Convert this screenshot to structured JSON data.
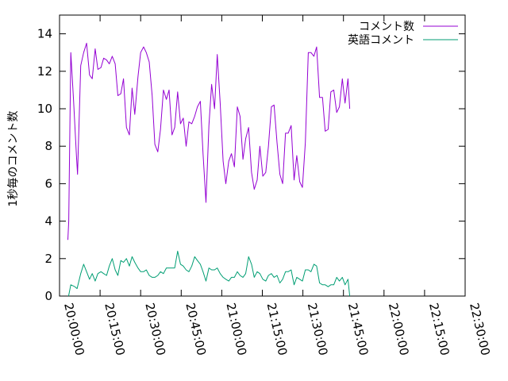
{
  "chart_data": {
    "type": "line",
    "title": "",
    "xlabel": "",
    "ylabel": "1秒毎のコメント数",
    "x_unit": "time of day (HH:MM:SS)",
    "xlim": [
      "20:00:00",
      "22:30:00"
    ],
    "ylim": [
      0,
      15
    ],
    "x_ticks": [
      "20:00:00",
      "20:15:00",
      "20:30:00",
      "20:45:00",
      "21:00:00",
      "21:15:00",
      "21:30:00",
      "21:45:00",
      "22:00:00",
      "22:15:00",
      "22:30:00"
    ],
    "y_ticks": [
      0,
      2,
      4,
      6,
      8,
      10,
      12,
      14
    ],
    "grid": false,
    "legend_position": "top-right",
    "series": [
      {
        "name": "コメント数",
        "color": "#9400d3",
        "points": [
          [
            "20:03:05",
            3.0
          ],
          [
            "20:03:25",
            4.0
          ],
          [
            "20:04:10",
            13.0
          ],
          [
            "20:05:10",
            10.5
          ],
          [
            "20:06:15",
            7.5
          ],
          [
            "20:06:40",
            6.5
          ],
          [
            "20:07:50",
            12.3
          ],
          [
            "20:08:55",
            13.0
          ],
          [
            "20:10:00",
            13.5
          ],
          [
            "20:11:05",
            11.8
          ],
          [
            "20:12:05",
            11.6
          ],
          [
            "20:13:10",
            13.2
          ],
          [
            "20:14:10",
            12.1
          ],
          [
            "20:15:20",
            12.2
          ],
          [
            "20:16:20",
            12.7
          ],
          [
            "20:17:25",
            12.6
          ],
          [
            "20:18:25",
            12.4
          ],
          [
            "20:19:30",
            12.8
          ],
          [
            "20:20:35",
            12.4
          ],
          [
            "20:21:35",
            10.7
          ],
          [
            "20:22:40",
            10.8
          ],
          [
            "20:23:40",
            11.6
          ],
          [
            "20:24:45",
            9.0
          ],
          [
            "20:25:50",
            8.6
          ],
          [
            "20:26:50",
            11.1
          ],
          [
            "20:27:50",
            9.7
          ],
          [
            "20:29:00",
            11.7
          ],
          [
            "20:30:00",
            13.0
          ],
          [
            "20:31:05",
            13.3
          ],
          [
            "20:32:05",
            13.0
          ],
          [
            "20:33:10",
            12.5
          ],
          [
            "20:34:15",
            10.7
          ],
          [
            "20:35:15",
            8.1
          ],
          [
            "20:36:20",
            7.7
          ],
          [
            "20:37:20",
            8.9
          ],
          [
            "20:38:25",
            11.0
          ],
          [
            "20:39:30",
            10.5
          ],
          [
            "20:40:30",
            11.0
          ],
          [
            "20:41:35",
            8.6
          ],
          [
            "20:42:35",
            9.0
          ],
          [
            "20:43:40",
            10.9
          ],
          [
            "20:44:45",
            9.2
          ],
          [
            "20:45:45",
            9.5
          ],
          [
            "20:46:50",
            8.0
          ],
          [
            "20:47:50",
            9.3
          ],
          [
            "20:48:55",
            9.2
          ],
          [
            "20:50:00",
            9.6
          ],
          [
            "20:51:00",
            10.1
          ],
          [
            "20:52:05",
            10.4
          ],
          [
            "20:53:05",
            7.6
          ],
          [
            "20:54:10",
            5.0
          ],
          [
            "20:55:15",
            9.1
          ],
          [
            "20:56:15",
            11.3
          ],
          [
            "20:57:20",
            10.0
          ],
          [
            "20:58:20",
            12.9
          ],
          [
            "20:59:25",
            10.3
          ],
          [
            "21:00:30",
            7.2
          ],
          [
            "21:01:30",
            6.0
          ],
          [
            "21:02:35",
            7.2
          ],
          [
            "21:03:35",
            7.6
          ],
          [
            "21:04:40",
            6.9
          ],
          [
            "21:05:45",
            10.1
          ],
          [
            "21:06:45",
            9.6
          ],
          [
            "21:07:50",
            7.3
          ],
          [
            "21:08:50",
            8.4
          ],
          [
            "21:09:55",
            9.0
          ],
          [
            "21:11:00",
            6.6
          ],
          [
            "21:12:00",
            5.7
          ],
          [
            "21:13:05",
            6.2
          ],
          [
            "21:14:05",
            8.0
          ],
          [
            "21:15:10",
            6.4
          ],
          [
            "21:16:15",
            6.6
          ],
          [
            "21:17:15",
            8.0
          ],
          [
            "21:18:20",
            10.1
          ],
          [
            "21:19:20",
            10.2
          ],
          [
            "21:20:25",
            8.2
          ],
          [
            "21:21:30",
            6.5
          ],
          [
            "21:22:30",
            6.0
          ],
          [
            "21:23:35",
            8.7
          ],
          [
            "21:24:35",
            8.7
          ],
          [
            "21:25:40",
            9.1
          ],
          [
            "21:26:45",
            6.2
          ],
          [
            "21:27:45",
            7.5
          ],
          [
            "21:28:50",
            6.1
          ],
          [
            "21:29:50",
            5.8
          ],
          [
            "21:30:55",
            8.2
          ],
          [
            "21:32:00",
            13.0
          ],
          [
            "21:33:00",
            13.0
          ],
          [
            "21:34:05",
            12.8
          ],
          [
            "21:35:05",
            13.3
          ],
          [
            "21:36:10",
            10.6
          ],
          [
            "21:37:15",
            10.6
          ],
          [
            "21:38:15",
            8.8
          ],
          [
            "21:39:20",
            8.9
          ],
          [
            "21:40:20",
            10.9
          ],
          [
            "21:41:25",
            11.0
          ],
          [
            "21:42:30",
            9.8
          ],
          [
            "21:43:30",
            10.1
          ],
          [
            "21:44:35",
            11.6
          ],
          [
            "21:45:35",
            10.3
          ],
          [
            "21:46:40",
            11.6
          ],
          [
            "21:47:20",
            10.0
          ]
        ]
      },
      {
        "name": "英語コメント",
        "color": "#009e73",
        "points": [
          [
            "20:03:20",
            0.0
          ],
          [
            "20:04:10",
            0.6
          ],
          [
            "20:05:40",
            0.5
          ],
          [
            "20:06:30",
            0.4
          ],
          [
            "20:07:50",
            1.2
          ],
          [
            "20:08:55",
            1.7
          ],
          [
            "20:10:00",
            1.3
          ],
          [
            "20:11:05",
            0.9
          ],
          [
            "20:12:05",
            1.2
          ],
          [
            "20:13:10",
            0.8
          ],
          [
            "20:14:10",
            1.2
          ],
          [
            "20:15:20",
            1.3
          ],
          [
            "20:16:20",
            1.2
          ],
          [
            "20:17:25",
            1.1
          ],
          [
            "20:18:25",
            1.6
          ],
          [
            "20:19:30",
            2.0
          ],
          [
            "20:20:35",
            1.4
          ],
          [
            "20:21:35",
            1.1
          ],
          [
            "20:22:40",
            1.9
          ],
          [
            "20:23:40",
            1.8
          ],
          [
            "20:24:45",
            2.0
          ],
          [
            "20:25:50",
            1.6
          ],
          [
            "20:26:50",
            2.1
          ],
          [
            "20:27:50",
            1.8
          ],
          [
            "20:29:00",
            1.5
          ],
          [
            "20:30:00",
            1.3
          ],
          [
            "20:31:05",
            1.3
          ],
          [
            "20:32:05",
            1.4
          ],
          [
            "20:33:10",
            1.1
          ],
          [
            "20:34:15",
            1.0
          ],
          [
            "20:35:15",
            1.0
          ],
          [
            "20:36:20",
            1.1
          ],
          [
            "20:37:20",
            1.3
          ],
          [
            "20:38:25",
            1.2
          ],
          [
            "20:39:30",
            1.5
          ],
          [
            "20:40:30",
            1.5
          ],
          [
            "20:41:35",
            1.5
          ],
          [
            "20:42:35",
            1.5
          ],
          [
            "20:43:40",
            2.4
          ],
          [
            "20:44:45",
            1.7
          ],
          [
            "20:45:45",
            1.6
          ],
          [
            "20:46:50",
            1.4
          ],
          [
            "20:47:50",
            1.3
          ],
          [
            "20:48:55",
            1.6
          ],
          [
            "20:50:00",
            2.1
          ],
          [
            "20:51:00",
            1.9
          ],
          [
            "20:52:05",
            1.7
          ],
          [
            "20:53:05",
            1.3
          ],
          [
            "20:54:10",
            0.8
          ],
          [
            "20:55:15",
            1.5
          ],
          [
            "20:56:15",
            1.4
          ],
          [
            "20:57:20",
            1.4
          ],
          [
            "20:58:20",
            1.5
          ],
          [
            "20:59:25",
            1.2
          ],
          [
            "21:00:30",
            1.0
          ],
          [
            "21:01:30",
            0.9
          ],
          [
            "21:02:35",
            0.8
          ],
          [
            "21:03:35",
            1.0
          ],
          [
            "21:04:40",
            1.0
          ],
          [
            "21:05:45",
            1.3
          ],
          [
            "21:06:45",
            1.1
          ],
          [
            "21:07:50",
            1.0
          ],
          [
            "21:08:50",
            1.2
          ],
          [
            "21:09:55",
            2.1
          ],
          [
            "21:11:00",
            1.7
          ],
          [
            "21:12:00",
            1.0
          ],
          [
            "21:13:05",
            1.3
          ],
          [
            "21:14:05",
            1.2
          ],
          [
            "21:15:10",
            0.9
          ],
          [
            "21:16:15",
            0.8
          ],
          [
            "21:17:15",
            1.1
          ],
          [
            "21:18:20",
            1.2
          ],
          [
            "21:19:20",
            1.0
          ],
          [
            "21:20:25",
            1.1
          ],
          [
            "21:21:30",
            0.7
          ],
          [
            "21:22:30",
            0.9
          ],
          [
            "21:23:35",
            1.3
          ],
          [
            "21:24:35",
            1.3
          ],
          [
            "21:25:40",
            1.4
          ],
          [
            "21:26:45",
            0.6
          ],
          [
            "21:27:45",
            1.0
          ],
          [
            "21:28:50",
            0.9
          ],
          [
            "21:29:50",
            0.8
          ],
          [
            "21:30:55",
            1.4
          ],
          [
            "21:32:00",
            1.4
          ],
          [
            "21:33:00",
            1.3
          ],
          [
            "21:34:05",
            1.7
          ],
          [
            "21:35:05",
            1.6
          ],
          [
            "21:36:10",
            0.7
          ],
          [
            "21:37:15",
            0.6
          ],
          [
            "21:38:15",
            0.6
          ],
          [
            "21:39:20",
            0.5
          ],
          [
            "21:40:20",
            0.6
          ],
          [
            "21:41:25",
            0.6
          ],
          [
            "21:42:30",
            1.0
          ],
          [
            "21:43:30",
            0.8
          ],
          [
            "21:44:35",
            1.0
          ],
          [
            "21:45:35",
            0.6
          ],
          [
            "21:46:40",
            0.9
          ],
          [
            "21:47:20",
            0.0
          ]
        ]
      }
    ]
  }
}
